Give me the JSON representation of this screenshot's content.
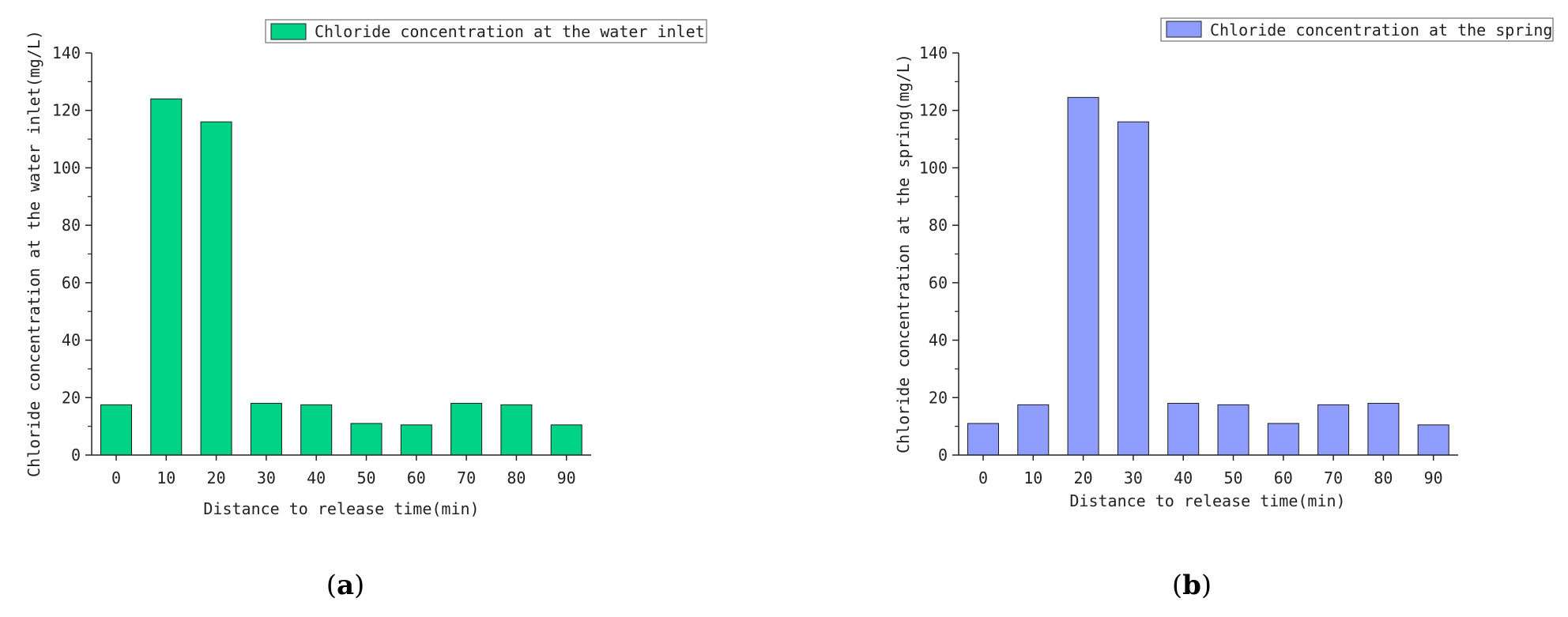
{
  "chart_data": [
    {
      "type": "bar",
      "panel_label": "a",
      "categories": [
        "0",
        "10",
        "20",
        "30",
        "40",
        "50",
        "60",
        "70",
        "80",
        "90"
      ],
      "series": [
        {
          "name": "Chloride concentration at the water inlet",
          "values": [
            17.5,
            124,
            116,
            18,
            17.5,
            11,
            10.5,
            18,
            17.5,
            10.5
          ]
        }
      ],
      "xlabel": "Distance to release time(min)",
      "ylabel": "Chloride concentration at the water inlet(mg/L)",
      "ylim": [
        0,
        140
      ],
      "yticks": [
        0,
        20,
        40,
        60,
        80,
        100,
        120,
        140
      ],
      "grid": false,
      "legend_position": "top-right",
      "color": "#00d385"
    },
    {
      "type": "bar",
      "panel_label": "b",
      "categories": [
        "0",
        "10",
        "20",
        "30",
        "40",
        "50",
        "60",
        "70",
        "80",
        "90"
      ],
      "series": [
        {
          "name": "Chloride concentration at the spring",
          "values": [
            11,
            17.5,
            124.5,
            116,
            18,
            17.5,
            11,
            17.5,
            18,
            10.5
          ]
        }
      ],
      "xlabel": "Distance to release time(min)",
      "ylabel": "Chloride concentration at the spring(mg/L)",
      "ylim": [
        0,
        140
      ],
      "yticks": [
        0,
        20,
        40,
        60,
        80,
        100,
        120,
        140
      ],
      "grid": false,
      "legend_position": "top-right",
      "color": "#8e9dff"
    }
  ]
}
